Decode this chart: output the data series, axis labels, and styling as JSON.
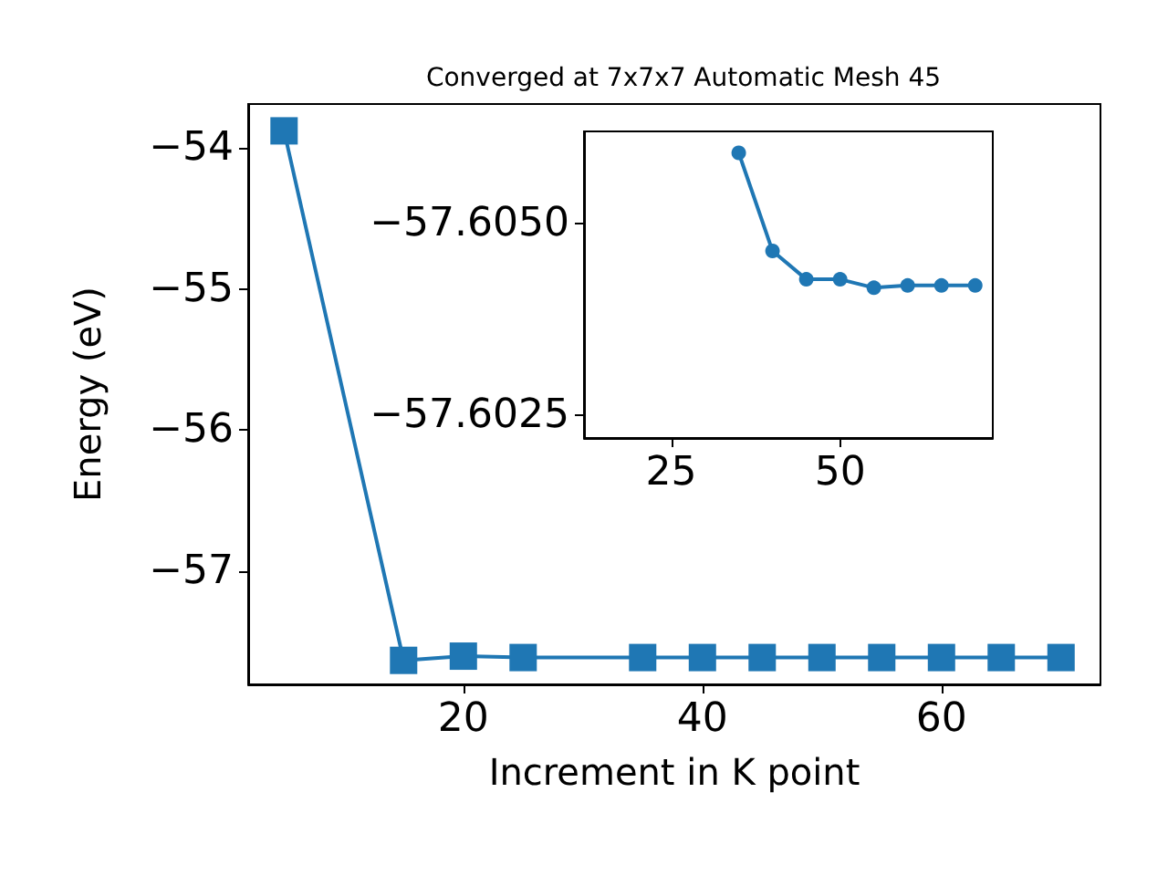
{
  "chart_data": [
    {
      "type": "line",
      "title": "Converged at 7x7x7 Automatic Mesh 45",
      "xlabel": "Increment in K point",
      "ylabel": "Energy (eV)",
      "x": [
        5,
        15,
        20,
        25,
        35,
        40,
        45,
        50,
        55,
        60,
        65,
        70
      ],
      "series": [
        {
          "color": "#1f77b4",
          "values": [
            -53.88,
            -57.63,
            -57.6,
            -57.61,
            -57.61,
            -57.61,
            -57.61,
            -57.61,
            -57.61,
            -57.61,
            -57.61,
            -57.61
          ]
        }
      ],
      "xlim": [
        2,
        73.3
      ],
      "ylim": [
        -57.8,
        -53.69
      ],
      "xticks": [
        20,
        40,
        60
      ],
      "yticks": [
        {
          "value": -57,
          "label": "−57"
        },
        {
          "value": -56,
          "label": "−56"
        },
        {
          "value": -55,
          "label": "−55"
        },
        {
          "value": -54,
          "label": "−54"
        }
      ],
      "marker": "square",
      "grid": false
    },
    {
      "type": "line",
      "x": [
        35,
        40,
        45,
        50,
        55,
        60,
        65,
        70
      ],
      "series": [
        {
          "color": "#1f77b4",
          "values": [
            -57.60592,
            -57.60464,
            -57.60427,
            -57.60427,
            -57.60416,
            -57.60419,
            -57.60419,
            -57.60419
          ]
        }
      ],
      "xlim": [
        12.1,
        72.6
      ],
      "ylim": [
        -57.6022,
        -57.6062
      ],
      "xticks": [
        25,
        50
      ],
      "yticks": [
        {
          "value": -57.605,
          "label": "−57.6050"
        },
        {
          "value": -57.6025,
          "label": "−57.6025"
        }
      ],
      "marker": "circle",
      "grid": false
    }
  ]
}
